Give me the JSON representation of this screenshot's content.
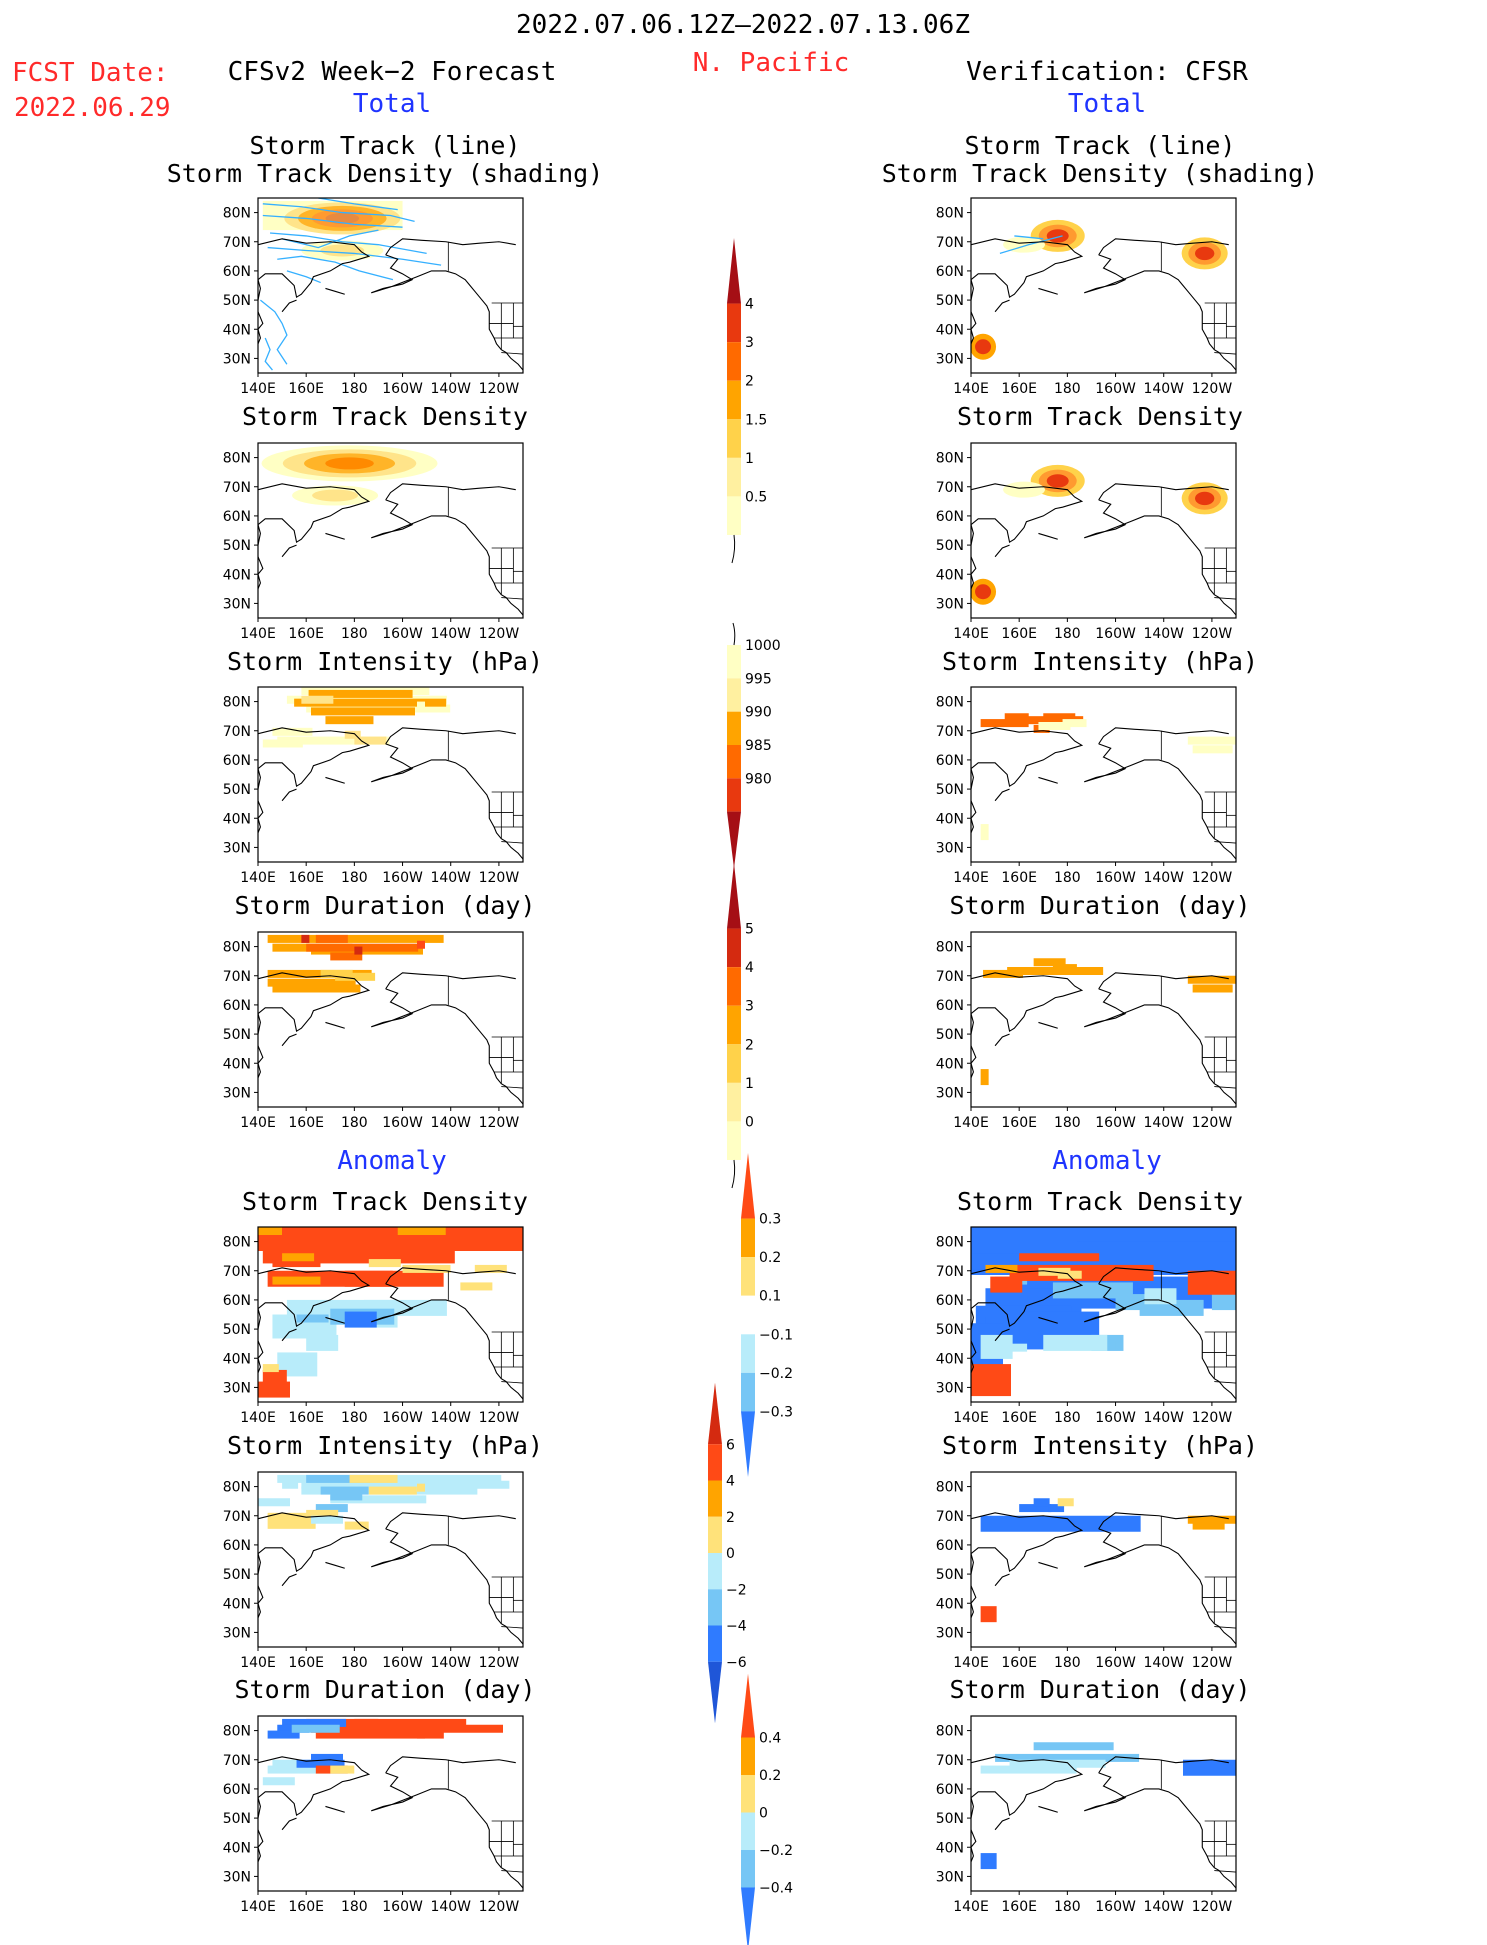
{
  "header": {
    "date_range": "2022.07.06.12Z–2022.07.13.06Z",
    "region": "N. Pacific",
    "fcst_label": "FCST Date:",
    "fcst_date": "2022.06.29",
    "left_title": "CFSv2 Week−2 Forecast",
    "right_title": "Verification: CFSR",
    "left_total": "Total",
    "right_total": "Total",
    "left_anomaly": "Anomaly",
    "right_anomaly": "Anomaly"
  },
  "axes": {
    "lat_ticks": [
      "80N",
      "70N",
      "60N",
      "50N",
      "40N",
      "30N"
    ],
    "lon_ticks": [
      "140E",
      "160E",
      "180",
      "160W",
      "140W",
      "120W"
    ]
  },
  "panels": [
    {
      "id": "fc-track",
      "title1": "Storm Track (line)",
      "title2": "Storm Track Density (shading)",
      "side": "left",
      "row": 0
    },
    {
      "id": "fc-density",
      "title1": "Storm Track Density",
      "title2": "",
      "side": "left",
      "row": 1
    },
    {
      "id": "fc-intensity",
      "title1": "Storm Intensity (hPa)",
      "title2": "",
      "side": "left",
      "row": 2
    },
    {
      "id": "fc-duration",
      "title1": "Storm Duration (day)",
      "title2": "",
      "side": "left",
      "row": 3
    },
    {
      "id": "fc-density-anom",
      "title1": "Storm Track Density",
      "title2": "",
      "side": "left",
      "row": 4
    },
    {
      "id": "fc-intensity-anom",
      "title1": "Storm Intensity (hPa)",
      "title2": "",
      "side": "left",
      "row": 5
    },
    {
      "id": "fc-duration-anom",
      "title1": "Storm Duration (day)",
      "title2": "",
      "side": "left",
      "row": 6
    },
    {
      "id": "vf-track",
      "title1": "Storm Track (line)",
      "title2": "Storm Track Density (shading)",
      "side": "right",
      "row": 0
    },
    {
      "id": "vf-density",
      "title1": "Storm Track Density",
      "title2": "",
      "side": "right",
      "row": 1
    },
    {
      "id": "vf-intensity",
      "title1": "Storm Intensity (hPa)",
      "title2": "",
      "side": "right",
      "row": 2
    },
    {
      "id": "vf-duration",
      "title1": "Storm Duration (day)",
      "title2": "",
      "side": "right",
      "row": 3
    },
    {
      "id": "vf-density-anom",
      "title1": "Storm Track Density",
      "title2": "",
      "side": "right",
      "row": 4
    },
    {
      "id": "vf-intensity-anom",
      "title1": "Storm Intensity (hPa)",
      "title2": "",
      "side": "right",
      "row": 5
    },
    {
      "id": "vf-duration-anom",
      "title1": "Storm Duration (day)",
      "title2": "",
      "side": "right",
      "row": 6
    }
  ],
  "colorbars": [
    {
      "id": "density",
      "labels": [
        "4",
        "3",
        "2",
        "1.5",
        "1",
        "0.5"
      ],
      "colors": [
        "#a50f15",
        "#e8390f",
        "#ff6a00",
        "#ffa400",
        "#ffd24a",
        "#fff0a0",
        "#ffffc4"
      ]
    },
    {
      "id": "intensity",
      "labels": [
        "1000",
        "995",
        "990",
        "985",
        "980"
      ],
      "colors": [
        "#ffffc4",
        "#fff0a0",
        "#ffa400",
        "#ff6a00",
        "#e8390f",
        "#a50f15"
      ]
    },
    {
      "id": "duration",
      "labels": [
        "5",
        "4",
        "3",
        "2",
        "1",
        "0"
      ],
      "colors": [
        "#a50f15",
        "#d42a10",
        "#ff6a00",
        "#ffa400",
        "#ffd24a",
        "#fff0a0",
        "#ffffc4"
      ]
    },
    {
      "id": "density-anom",
      "labels": [
        "0.3",
        "0.2",
        "0.1",
        "−0.1",
        "−0.2",
        "−0.3"
      ],
      "colors": [
        "#ff4a16",
        "#ffa400",
        "#ffe27a",
        "#ffffff",
        "#b8ecfa",
        "#76c6f5",
        "#2f7bff"
      ]
    },
    {
      "id": "intensity-anom",
      "labels": [
        "6",
        "4",
        "2",
        "0",
        "−2",
        "−4",
        "−6"
      ],
      "colors": [
        "#d42a10",
        "#ff4a16",
        "#ffa400",
        "#ffe27a",
        "#b8ecfa",
        "#76c6f5",
        "#2f7bff",
        "#1f56d8"
      ]
    },
    {
      "id": "duration-anom",
      "labels": [
        "0.4",
        "0.2",
        "0",
        "−0.2",
        "−0.4"
      ],
      "colors": [
        "#ff4a16",
        "#ffa400",
        "#ffe27a",
        "#b8ecfa",
        "#76c6f5",
        "#2f7bff"
      ]
    }
  ],
  "colors": {
    "accent_red": "#ff2a2a",
    "accent_blue": "#1f34ff",
    "track_line": "#35b0ff"
  },
  "chart_data": [
    {
      "type": "heatmap",
      "panel": "fc-track",
      "title": "Storm Track (line) / Storm Track Density (shading)",
      "lon_range": [
        "140E",
        "120W"
      ],
      "lat_range": [
        "30N",
        "80N"
      ],
      "features": [
        {
          "lon": 180,
          "lat": 78,
          "value": 1.5,
          "c": 1
        },
        {
          "lon": 175,
          "lat": 78,
          "value": 1,
          "c": 2
        },
        {
          "lon": 165,
          "lat": 75,
          "value": 0.5,
          "c": 3
        },
        {
          "lon": 170,
          "lat": 66,
          "value": 0.5,
          "c": 3
        }
      ]
    },
    {
      "type": "heatmap",
      "panel": "fc-density",
      "title": "Storm Track Density",
      "features": [
        {
          "lon": 180,
          "lat": 79,
          "value": 1.5,
          "c": 1
        },
        {
          "lon": 180,
          "lat": 78,
          "value": 1,
          "c": 2
        },
        {
          "lon": 175,
          "lat": 77,
          "value": 0.5,
          "c": 3
        },
        {
          "lon": 170,
          "lat": 67,
          "value": 0.5,
          "c": 3
        }
      ]
    },
    {
      "type": "heatmap",
      "panel": "fc-intensity",
      "title": "Storm Intensity (hPa)",
      "features": [
        {
          "lon": 175,
          "lat": 78,
          "value": 995,
          "c": 2
        },
        {
          "lon": 172,
          "lat": 68,
          "value": 1000,
          "c": 0
        },
        {
          "lon": 180,
          "lat": 70,
          "value": 995,
          "c": 1
        }
      ]
    },
    {
      "type": "heatmap",
      "panel": "fc-duration",
      "title": "Storm Duration (day)",
      "features": [
        {
          "lon": 180,
          "lat": 78,
          "value": 2,
          "c": 3
        },
        {
          "lon": 170,
          "lat": 67,
          "value": 1,
          "c": 4
        },
        {
          "lon": 195,
          "lat": 79,
          "value": 3,
          "c": 2
        }
      ]
    },
    {
      "type": "heatmap",
      "panel": "fc-density-anom",
      "title": "Storm Track Density anomaly",
      "features": [
        {
          "lon": 180,
          "lat": 77,
          "value": 0.3,
          "c": 0
        },
        {
          "lon": 175,
          "lat": 64,
          "value": 0.3,
          "c": 0
        },
        {
          "lon": 182,
          "lat": 52,
          "value": -0.3,
          "c": 6
        },
        {
          "lon": 175,
          "lat": 50,
          "value": -0.1,
          "c": 4
        },
        {
          "lon": 146,
          "lat": 32,
          "value": 0.3,
          "c": 0
        }
      ]
    },
    {
      "type": "heatmap",
      "panel": "fc-intensity-anom",
      "title": "Storm Intensity anomaly (hPa)",
      "features": [
        {
          "lon": 175,
          "lat": 78,
          "value": -2,
          "c": 4
        },
        {
          "lon": 180,
          "lat": 79,
          "value": -4,
          "c": 5
        },
        {
          "lon": 168,
          "lat": 67,
          "value": 2,
          "c": 3
        },
        {
          "lon": 200,
          "lat": 80,
          "value": 2,
          "c": 3
        }
      ]
    },
    {
      "type": "heatmap",
      "panel": "fc-duration-anom",
      "title": "Storm Duration anomaly (day)",
      "features": [
        {
          "lon": 185,
          "lat": 79,
          "value": 0.4,
          "c": 0
        },
        {
          "lon": 160,
          "lat": 81,
          "value": -0.4,
          "c": 5
        },
        {
          "lon": 168,
          "lat": 68,
          "value": -0.2,
          "c": 4
        },
        {
          "lon": 175,
          "lat": 70,
          "value": -0.4,
          "c": 5
        }
      ]
    },
    {
      "type": "heatmap",
      "panel": "vf-track",
      "title": "Storm Track (line) / Storm Track Density (shading)",
      "features": [
        {
          "lon": 176,
          "lat": 72,
          "value": 2,
          "c": 0
        },
        {
          "lon": 240,
          "lat": 66,
          "value": 2,
          "c": 0
        },
        {
          "lon": 145,
          "lat": 35,
          "value": 2,
          "c": 0
        }
      ]
    },
    {
      "type": "heatmap",
      "panel": "vf-density",
      "title": "Storm Track Density",
      "features": [
        {
          "lon": 176,
          "lat": 72,
          "value": 2,
          "c": 0
        },
        {
          "lon": 240,
          "lat": 66,
          "value": 2,
          "c": 0
        },
        {
          "lon": 145,
          "lat": 35,
          "value": 2,
          "c": 0
        }
      ]
    },
    {
      "type": "heatmap",
      "panel": "vf-intensity",
      "title": "Storm Intensity (hPa)",
      "features": [
        {
          "lon": 168,
          "lat": 68,
          "value": 990,
          "c": 3
        },
        {
          "lon": 235,
          "lat": 66,
          "value": 1000,
          "c": 0
        },
        {
          "lon": 145,
          "lat": 35,
          "value": 1000,
          "c": 0
        }
      ]
    },
    {
      "type": "heatmap",
      "panel": "vf-duration",
      "title": "Storm Duration (day)",
      "features": [
        {
          "lon": 170,
          "lat": 68,
          "value": 1,
          "c": 4
        },
        {
          "lon": 235,
          "lat": 66,
          "value": 1,
          "c": 4
        },
        {
          "lon": 145,
          "lat": 35,
          "value": 1,
          "c": 4
        }
      ]
    },
    {
      "type": "heatmap",
      "panel": "vf-density-anom",
      "title": "Storm Track Density anomaly",
      "features": [
        {
          "lon": 190,
          "lat": 80,
          "value": -0.3,
          "c": 6
        },
        {
          "lon": 185,
          "lat": 52,
          "value": -0.3,
          "c": 6
        },
        {
          "lon": 172,
          "lat": 70,
          "value": 0.3,
          "c": 0
        },
        {
          "lon": 238,
          "lat": 65,
          "value": 0.3,
          "c": 0
        },
        {
          "lon": 146,
          "lat": 32,
          "value": 0.3,
          "c": 0
        }
      ]
    },
    {
      "type": "heatmap",
      "panel": "vf-intensity-anom",
      "title": "Storm Intensity anomaly (hPa)",
      "features": [
        {
          "lon": 165,
          "lat": 68,
          "value": -6,
          "c": 6
        },
        {
          "lon": 236,
          "lat": 66,
          "value": 2,
          "c": 3
        },
        {
          "lon": 146,
          "lat": 35,
          "value": 6,
          "c": 1
        }
      ]
    },
    {
      "type": "heatmap",
      "panel": "vf-duration-anom",
      "title": "Storm Duration anomaly (day)",
      "features": [
        {
          "lon": 170,
          "lat": 70,
          "value": -0.2,
          "c": 4
        },
        {
          "lon": 236,
          "lat": 67,
          "value": -0.4,
          "c": 5
        },
        {
          "lon": 146,
          "lat": 35,
          "value": -0.4,
          "c": 5
        }
      ]
    }
  ]
}
